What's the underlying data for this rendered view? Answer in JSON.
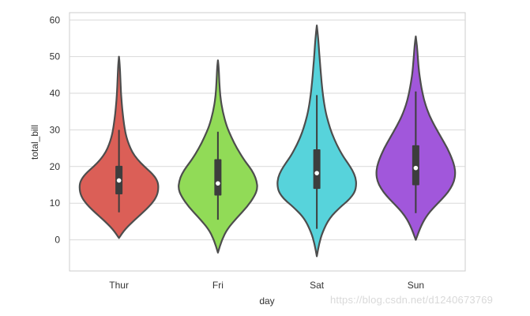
{
  "chart_data": {
    "type": "violin",
    "title": "",
    "xlabel": "day",
    "ylabel": "total_bill",
    "ylim": [
      -8.5,
      62
    ],
    "yticks": [
      0,
      10,
      20,
      30,
      40,
      50,
      60
    ],
    "grid": "horizontal",
    "categories": [
      "Thur",
      "Fri",
      "Sat",
      "Sun"
    ],
    "colors": [
      "#db5f57",
      "#91db57",
      "#57d3db",
      "#a157db"
    ],
    "outline_color": "#4d4d4d",
    "box_color": "#3d3d3d",
    "median_color": "#ffffff",
    "violins": [
      {
        "category": "Thur",
        "range": [
          0.5,
          50
        ],
        "quartiles": [
          12.4,
          16.2,
          20.2
        ],
        "whiskers": [
          7.5,
          30.0
        ],
        "profile": [
          [
            0.5,
            0.0
          ],
          [
            3,
            0.16
          ],
          [
            5.5,
            0.4
          ],
          [
            8,
            0.66
          ],
          [
            10,
            0.84
          ],
          [
            12,
            0.96
          ],
          [
            14,
            1.0
          ],
          [
            16,
            0.98
          ],
          [
            18,
            0.85
          ],
          [
            20,
            0.64
          ],
          [
            22,
            0.46
          ],
          [
            24,
            0.33
          ],
          [
            26,
            0.25
          ],
          [
            28,
            0.19
          ],
          [
            30,
            0.15
          ],
          [
            33,
            0.11
          ],
          [
            36,
            0.08
          ],
          [
            40,
            0.05
          ],
          [
            44,
            0.035
          ],
          [
            48,
            0.018
          ],
          [
            50,
            0.0
          ]
        ]
      },
      {
        "category": "Fri",
        "range": [
          -3.5,
          49
        ],
        "quartiles": [
          12.1,
          15.4,
          22.0
        ],
        "whiskers": [
          5.5,
          29.5
        ],
        "profile": [
          [
            -3.5,
            0.0
          ],
          [
            0,
            0.1
          ],
          [
            3,
            0.24
          ],
          [
            6,
            0.48
          ],
          [
            9,
            0.74
          ],
          [
            12,
            0.93
          ],
          [
            14,
            1.0
          ],
          [
            16,
            0.98
          ],
          [
            18,
            0.91
          ],
          [
            20,
            0.79
          ],
          [
            22,
            0.65
          ],
          [
            25,
            0.48
          ],
          [
            28,
            0.34
          ],
          [
            31,
            0.22
          ],
          [
            35,
            0.12
          ],
          [
            39,
            0.06
          ],
          [
            43,
            0.035
          ],
          [
            47,
            0.02
          ],
          [
            49,
            0.0
          ]
        ]
      },
      {
        "category": "Sat",
        "range": [
          -4.5,
          58.5
        ],
        "quartiles": [
          13.9,
          18.2,
          24.7
        ],
        "whiskers": [
          3.0,
          39.5
        ],
        "profile": [
          [
            -4.5,
            0.0
          ],
          [
            -1,
            0.06
          ],
          [
            2,
            0.14
          ],
          [
            6,
            0.32
          ],
          [
            9,
            0.6
          ],
          [
            11,
            0.82
          ],
          [
            13,
            0.96
          ],
          [
            15,
            1.0
          ],
          [
            17,
            0.98
          ],
          [
            19,
            0.9
          ],
          [
            21,
            0.78
          ],
          [
            23,
            0.65
          ],
          [
            26,
            0.5
          ],
          [
            29,
            0.38
          ],
          [
            32,
            0.29
          ],
          [
            35,
            0.22
          ],
          [
            39,
            0.16
          ],
          [
            43,
            0.12
          ],
          [
            47,
            0.09
          ],
          [
            51,
            0.06
          ],
          [
            55,
            0.035
          ],
          [
            58.5,
            0.0
          ]
        ]
      },
      {
        "category": "Sun",
        "range": [
          0,
          55.5
        ],
        "quartiles": [
          14.9,
          19.6,
          25.8
        ],
        "whiskers": [
          7.3,
          40.5
        ],
        "profile": [
          [
            0,
            0.0
          ],
          [
            4,
            0.14
          ],
          [
            7,
            0.3
          ],
          [
            10,
            0.56
          ],
          [
            12,
            0.74
          ],
          [
            14,
            0.88
          ],
          [
            16,
            0.97
          ],
          [
            18,
            1.0
          ],
          [
            20,
            0.98
          ],
          [
            22,
            0.92
          ],
          [
            25,
            0.8
          ],
          [
            28,
            0.64
          ],
          [
            31,
            0.48
          ],
          [
            34,
            0.34
          ],
          [
            37,
            0.24
          ],
          [
            40,
            0.17
          ],
          [
            43,
            0.12
          ],
          [
            46,
            0.08
          ],
          [
            50,
            0.05
          ],
          [
            53,
            0.03
          ],
          [
            55.5,
            0.0
          ]
        ]
      }
    ]
  },
  "watermark": "https://blog.csdn.net/d1240673769"
}
